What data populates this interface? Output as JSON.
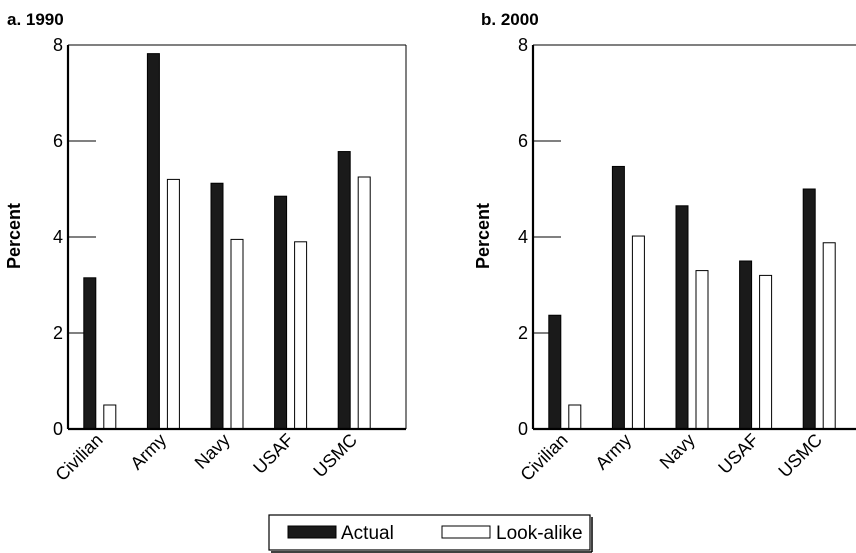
{
  "chart_data": [
    {
      "type": "bar",
      "title": "a. 1990",
      "ylabel": "Percent",
      "xlabel": "",
      "categories": [
        "Civilian",
        "Army",
        "Navy",
        "USAF",
        "USMC"
      ],
      "ylim": [
        0,
        8
      ],
      "yticks": [
        0,
        2,
        4,
        6,
        8
      ],
      "series": [
        {
          "name": "Actual",
          "color": "#1a1a1a",
          "values": [
            3.15,
            7.82,
            5.12,
            4.85,
            5.78
          ]
        },
        {
          "name": "Look-alike",
          "color": "#ffffff",
          "values": [
            0.5,
            5.2,
            3.95,
            3.9,
            5.25
          ]
        }
      ]
    },
    {
      "type": "bar",
      "title": "b. 2000",
      "ylabel": "Percent",
      "xlabel": "",
      "categories": [
        "Civilian",
        "Army",
        "Navy",
        "USAF",
        "USMC"
      ],
      "ylim": [
        0,
        8
      ],
      "yticks": [
        0,
        2,
        4,
        6,
        8
      ],
      "series": [
        {
          "name": "Actual",
          "color": "#1a1a1a",
          "values": [
            2.37,
            5.47,
            4.65,
            3.5,
            5.0
          ]
        },
        {
          "name": "Look-alike",
          "color": "#ffffff",
          "values": [
            0.5,
            4.02,
            3.3,
            3.2,
            3.88
          ]
        }
      ]
    }
  ],
  "legend": {
    "items": [
      {
        "label": "Actual",
        "swatch": "filled"
      },
      {
        "label": "Look-alike",
        "swatch": "outline"
      }
    ]
  }
}
